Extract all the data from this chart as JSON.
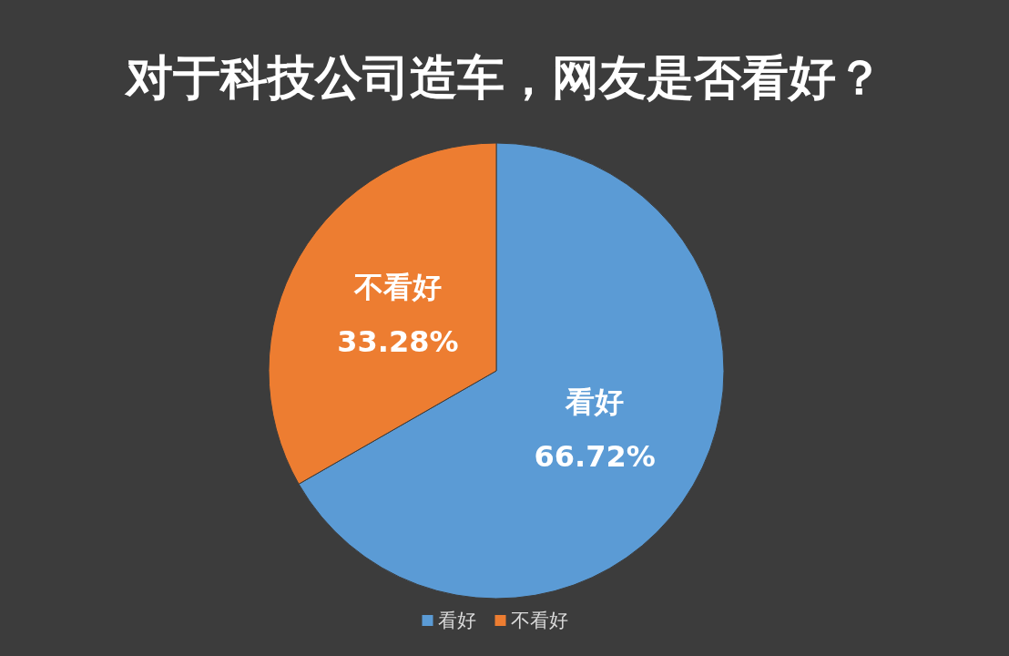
{
  "chart_data": {
    "type": "pie",
    "title": "对于科技公司造车，网友是否看好？",
    "categories": [
      "看好",
      "不看好"
    ],
    "values": [
      66.72,
      33.28
    ],
    "colors": [
      "#5b9bd5",
      "#ed7d31"
    ],
    "value_labels": [
      "66.72%",
      "33.28%"
    ],
    "legend": "bottom"
  }
}
